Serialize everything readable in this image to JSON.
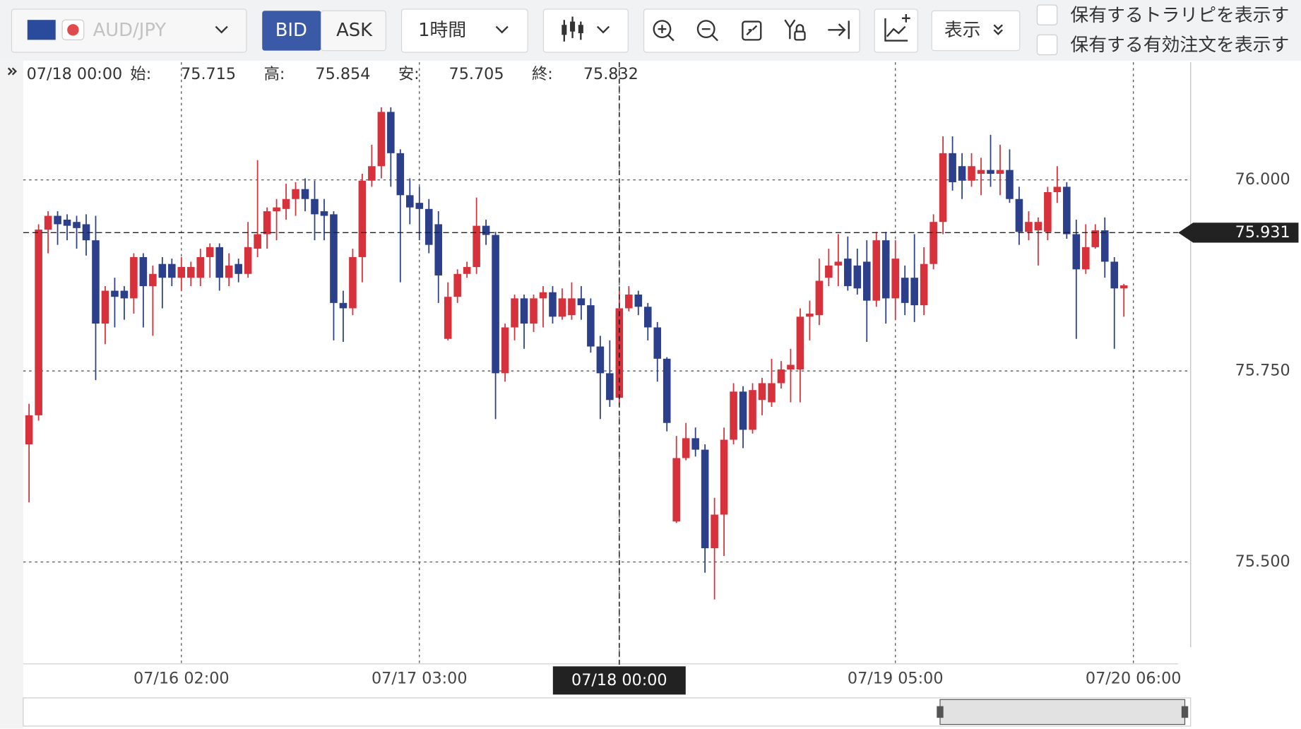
{
  "toolbar": {
    "symbol": "AUD/JPY",
    "bid": "BID",
    "ask": "ASK",
    "interval": "1時間",
    "display": "表示",
    "options": [
      "保有するトラリピを表示す",
      "保有する有効注文を表示す"
    ]
  },
  "chart_data": {
    "type": "candlestick",
    "x": [
      "07/15 10:00",
      "07/15 11:00",
      "07/15 12:00",
      "07/15 13:00",
      "07/15 14:00",
      "07/15 15:00",
      "07/15 16:00",
      "07/15 17:00",
      "07/15 18:00",
      "07/15 19:00",
      "07/15 20:00",
      "07/15 21:00",
      "07/15 22:00",
      "07/15 23:00",
      "07/16 00:00",
      "07/16 01:00",
      "07/16 02:00",
      "07/16 03:00",
      "07/16 04:00",
      "07/16 05:00",
      "07/16 06:00",
      "07/16 07:00",
      "07/16 08:00",
      "07/16 09:00",
      "07/16 10:00",
      "07/16 11:00",
      "07/16 12:00",
      "07/16 13:00",
      "07/16 14:00",
      "07/16 15:00",
      "07/16 16:00",
      "07/16 17:00",
      "07/16 18:00",
      "07/16 19:00",
      "07/16 20:00",
      "07/16 21:00",
      "07/16 22:00",
      "07/16 23:00",
      "07/17 00:00",
      "07/17 01:00",
      "07/17 02:00",
      "07/17 03:00",
      "07/17 04:00",
      "07/17 05:00",
      "07/17 06:00",
      "07/17 07:00",
      "07/17 08:00",
      "07/17 09:00",
      "07/17 10:00",
      "07/17 11:00",
      "07/17 12:00",
      "07/17 13:00",
      "07/17 14:00",
      "07/17 15:00",
      "07/17 16:00",
      "07/17 17:00",
      "07/17 18:00",
      "07/17 19:00",
      "07/17 20:00",
      "07/17 21:00",
      "07/17 22:00",
      "07/17 23:00",
      "07/18 00:00",
      "07/18 01:00",
      "07/18 02:00",
      "07/18 03:00",
      "07/18 04:00",
      "07/18 05:00",
      "07/18 06:00",
      "07/18 07:00",
      "07/18 08:00",
      "07/18 09:00",
      "07/18 10:00",
      "07/18 11:00",
      "07/18 12:00",
      "07/18 13:00",
      "07/18 14:00",
      "07/18 15:00",
      "07/18 16:00",
      "07/18 17:00",
      "07/18 18:00",
      "07/18 19:00",
      "07/18 20:00",
      "07/18 21:00",
      "07/18 22:00",
      "07/18 23:00",
      "07/19 00:00",
      "07/19 01:00",
      "07/19 02:00",
      "07/19 03:00",
      "07/19 04:00",
      "07/19 05:00",
      "07/19 06:00",
      "07/19 07:00",
      "07/19 08:00",
      "07/19 09:00",
      "07/19 10:00",
      "07/19 11:00",
      "07/19 12:00",
      "07/19 13:00",
      "07/19 14:00",
      "07/19 15:00",
      "07/19 16:00",
      "07/19 17:00",
      "07/19 18:00",
      "07/19 19:00",
      "07/19 20:00",
      "07/19 21:00",
      "07/19 22:00",
      "07/19 23:00",
      "07/20 00:00",
      "07/20 01:00",
      "07/20 02:00",
      "07/20 03:00",
      "07/20 04:00",
      "07/20 05:00"
    ],
    "open": [
      75.654,
      75.692,
      75.935,
      75.953,
      75.948,
      75.945,
      75.942,
      75.921,
      75.812,
      75.855,
      75.855,
      75.845,
      75.899,
      75.861,
      75.89,
      75.89,
      75.872,
      75.872,
      75.872,
      75.899,
      75.912,
      75.872,
      75.89,
      75.877,
      75.91,
      75.929,
      75.959,
      75.962,
      75.975,
      75.988,
      75.975,
      75.959,
      75.955,
      75.839,
      75.832,
      75.899,
      75.999,
      76.018,
      76.089,
      76.035,
      75.98,
      75.97,
      75.962,
      75.942,
      75.792,
      75.847,
      75.877,
      75.886,
      75.94,
      75.928,
      75.747,
      75.807,
      75.845,
      75.812,
      75.845,
      75.853,
      75.821,
      75.823,
      75.845,
      75.836,
      75.782,
      75.747,
      75.715,
      75.832,
      75.85,
      75.834,
      75.807,
      75.766,
      75.553,
      75.636,
      75.662,
      75.647,
      75.518,
      75.562,
      75.66,
      75.723,
      75.673,
      75.712,
      75.709,
      75.734,
      75.752,
      75.752,
      75.821,
      75.823,
      75.872,
      75.888,
      75.897,
      75.888,
      75.893,
      75.842,
      75.921,
      75.845,
      75.872,
      75.872,
      75.836,
      75.89,
      75.945,
      76.035,
      76.018,
      75.999,
      76.008,
      76.013,
      76.008,
      76.013,
      75.975,
      75.932,
      75.934,
      75.932,
      75.984,
      75.991,
      75.929,
      75.883,
      75.912,
      75.934,
      75.893,
      75.858
    ],
    "high": [
      75.707,
      75.942,
      75.959,
      75.959,
      75.955,
      75.953,
      75.955,
      75.953,
      75.861,
      75.872,
      75.861,
      75.904,
      75.904,
      75.888,
      75.899,
      75.897,
      75.899,
      75.893,
      75.91,
      75.917,
      75.917,
      75.904,
      75.897,
      75.945,
      76.026,
      75.964,
      75.975,
      75.995,
      75.997,
      76.002,
      75.999,
      75.975,
      75.959,
      75.855,
      75.91,
      76.008,
      76.046,
      76.095,
      76.095,
      76.04,
      76.002,
      75.991,
      75.975,
      75.959,
      75.866,
      75.883,
      75.893,
      75.977,
      75.948,
      75.932,
      75.812,
      75.85,
      75.85,
      75.85,
      75.861,
      75.861,
      75.858,
      75.866,
      75.861,
      75.845,
      75.796,
      75.79,
      75.854,
      75.861,
      75.855,
      75.839,
      75.814,
      75.768,
      75.665,
      75.682,
      75.676,
      75.654,
      75.584,
      75.676,
      75.734,
      75.73,
      75.734,
      75.741,
      75.766,
      75.763,
      75.779,
      75.832,
      75.842,
      75.897,
      75.91,
      75.929,
      75.926,
      75.91,
      75.921,
      75.932,
      75.932,
      75.921,
      75.888,
      75.929,
      75.912,
      75.955,
      76.057,
      76.057,
      76.035,
      76.035,
      76.029,
      76.059,
      76.046,
      76.04,
      75.991,
      75.959,
      75.951,
      75.991,
      76.018,
      75.997,
      75.948,
      75.942,
      75.942,
      75.951,
      75.899,
      75.864
    ],
    "low": [
      75.578,
      75.685,
      75.904,
      75.915,
      75.921,
      75.91,
      75.901,
      75.738,
      75.785,
      75.807,
      75.817,
      75.825,
      75.807,
      75.796,
      75.832,
      75.861,
      75.855,
      75.861,
      75.861,
      75.872,
      75.855,
      75.861,
      75.866,
      75.872,
      75.899,
      75.91,
      75.921,
      75.948,
      75.953,
      75.959,
      75.921,
      75.921,
      75.79,
      75.788,
      75.823,
      75.866,
      75.991,
      76.002,
      75.991,
      75.866,
      75.942,
      75.921,
      75.904,
      75.839,
      75.79,
      75.839,
      75.872,
      75.877,
      75.915,
      75.687,
      75.736,
      75.79,
      75.779,
      75.801,
      75.807,
      75.812,
      75.817,
      75.817,
      75.817,
      75.774,
      75.687,
      75.703,
      75.705,
      75.828,
      75.823,
      75.79,
      75.736,
      75.671,
      75.551,
      75.633,
      75.638,
      75.486,
      75.451,
      75.508,
      75.654,
      75.649,
      75.668,
      75.692,
      75.703,
      75.727,
      75.709,
      75.709,
      75.79,
      75.81,
      75.861,
      75.861,
      75.855,
      75.85,
      75.788,
      75.834,
      75.812,
      75.817,
      75.823,
      75.814,
      75.823,
      75.883,
      75.929,
      75.986,
      75.975,
      75.991,
      75.98,
      75.991,
      75.98,
      75.97,
      75.915,
      75.921,
      75.888,
      75.921,
      75.97,
      75.923,
      75.792,
      75.877,
      75.91,
      75.872,
      75.779,
      75.821
    ],
    "close": [
      75.692,
      75.935,
      75.953,
      75.942,
      75.94,
      75.937,
      75.921,
      75.812,
      75.855,
      75.847,
      75.845,
      75.899,
      75.861,
      75.877,
      75.872,
      75.872,
      75.886,
      75.886,
      75.899,
      75.912,
      75.872,
      75.888,
      75.877,
      75.912,
      75.929,
      75.959,
      75.964,
      75.975,
      75.988,
      75.975,
      75.955,
      75.953,
      75.839,
      75.832,
      75.899,
      75.999,
      76.018,
      76.089,
      76.035,
      75.98,
      75.964,
      75.962,
      75.915,
      75.875,
      75.847,
      75.877,
      75.886,
      75.94,
      75.928,
      75.747,
      75.807,
      75.845,
      75.812,
      75.845,
      75.853,
      75.821,
      75.845,
      75.845,
      75.836,
      75.782,
      75.747,
      75.712,
      75.832,
      75.85,
      75.834,
      75.807,
      75.766,
      75.682,
      75.636,
      75.662,
      75.647,
      75.518,
      75.562,
      75.66,
      75.723,
      75.673,
      75.725,
      75.734,
      75.734,
      75.752,
      75.758,
      75.821,
      75.825,
      75.868,
      75.888,
      75.893,
      75.861,
      75.858,
      75.842,
      75.921,
      75.845,
      75.897,
      75.839,
      75.836,
      75.89,
      75.945,
      76.035,
      75.997,
      75.999,
      76.018,
      76.013,
      76.008,
      76.013,
      75.975,
      75.932,
      75.945,
      75.945,
      75.984,
      75.991,
      75.929,
      75.883,
      75.912,
      75.934,
      75.893,
      75.858,
      75.862
    ],
    "up_color": "#d7313b",
    "down_color": "#2b3f8a",
    "xlim": [
      "07/15 10:00",
      "07/20 06:00"
    ],
    "xticks": [
      "07/16 02:00",
      "07/17 03:00",
      "07/18 00:00",
      "07/19 05:00",
      "07/20 06:00"
    ],
    "ylim": [
      75.383,
      76.154
    ],
    "yticks": [
      {
        "value": 75.5,
        "label": "75.500"
      },
      {
        "value": 75.75,
        "label": "75.750"
      },
      {
        "value": 76,
        "label": "76.000"
      }
    ],
    "grid": true,
    "current_price": 75.931,
    "crosshair": {
      "x": "07/18 00:00",
      "open_label": "始:",
      "open": 75.715,
      "high_label": "高:",
      "high": 75.854,
      "low_label": "安:",
      "low": 75.705,
      "close_label": "終:",
      "close": 75.832
    }
  }
}
